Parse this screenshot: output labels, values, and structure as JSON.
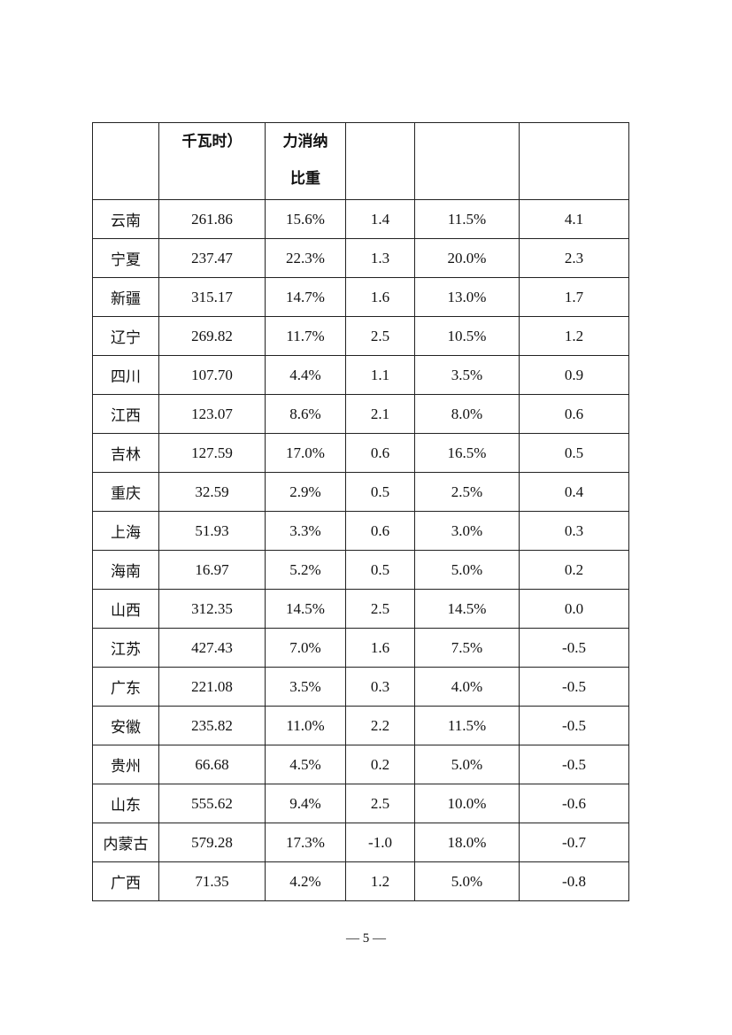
{
  "table": {
    "header": [
      [],
      [
        "千瓦时）"
      ],
      [
        "力消纳",
        "比重"
      ],
      [],
      [],
      []
    ],
    "rows": [
      [
        "云南",
        "261.86",
        "15.6%",
        "1.4",
        "11.5%",
        "4.1"
      ],
      [
        "宁夏",
        "237.47",
        "22.3%",
        "1.3",
        "20.0%",
        "2.3"
      ],
      [
        "新疆",
        "315.17",
        "14.7%",
        "1.6",
        "13.0%",
        "1.7"
      ],
      [
        "辽宁",
        "269.82",
        "11.7%",
        "2.5",
        "10.5%",
        "1.2"
      ],
      [
        "四川",
        "107.70",
        "4.4%",
        "1.1",
        "3.5%",
        "0.9"
      ],
      [
        "江西",
        "123.07",
        "8.6%",
        "2.1",
        "8.0%",
        "0.6"
      ],
      [
        "吉林",
        "127.59",
        "17.0%",
        "0.6",
        "16.5%",
        "0.5"
      ],
      [
        "重庆",
        "32.59",
        "2.9%",
        "0.5",
        "2.5%",
        "0.4"
      ],
      [
        "上海",
        "51.93",
        "3.3%",
        "0.6",
        "3.0%",
        "0.3"
      ],
      [
        "海南",
        "16.97",
        "5.2%",
        "0.5",
        "5.0%",
        "0.2"
      ],
      [
        "山西",
        "312.35",
        "14.5%",
        "2.5",
        "14.5%",
        "0.0"
      ],
      [
        "江苏",
        "427.43",
        "7.0%",
        "1.6",
        "7.5%",
        "-0.5"
      ],
      [
        "广东",
        "221.08",
        "3.5%",
        "0.3",
        "4.0%",
        "-0.5"
      ],
      [
        "安徽",
        "235.82",
        "11.0%",
        "2.2",
        "11.5%",
        "-0.5"
      ],
      [
        "贵州",
        "66.68",
        "4.5%",
        "0.2",
        "5.0%",
        "-0.5"
      ],
      [
        "山东",
        "555.62",
        "9.4%",
        "2.5",
        "10.0%",
        "-0.6"
      ],
      [
        "内蒙古",
        "579.28",
        "17.3%",
        "-1.0",
        "18.0%",
        "-0.7"
      ],
      [
        "广西",
        "71.35",
        "4.2%",
        "1.2",
        "5.0%",
        "-0.8"
      ]
    ]
  },
  "footer": {
    "page_number": "— 5 —"
  }
}
